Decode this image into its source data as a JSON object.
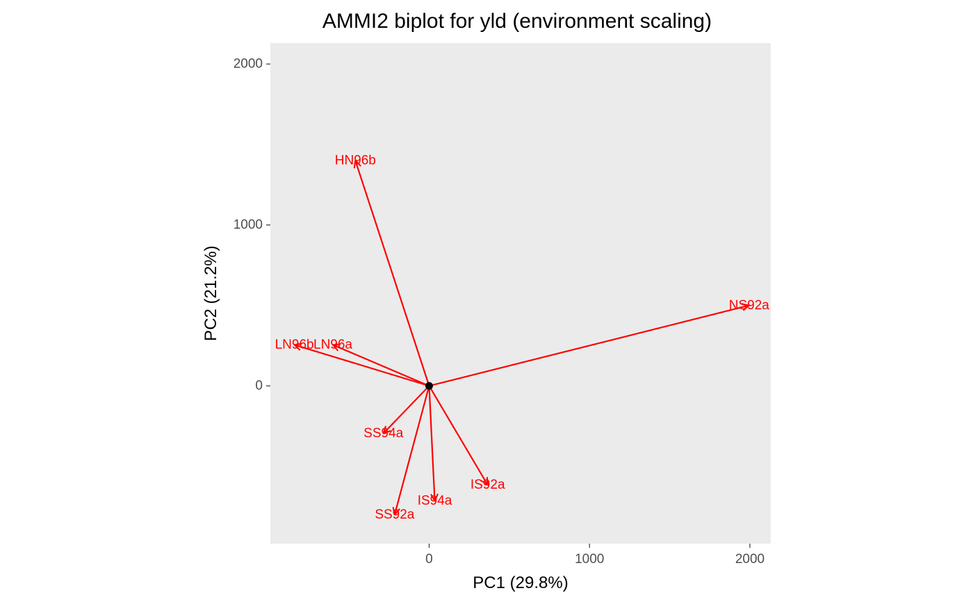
{
  "chart_data": {
    "type": "scatter",
    "title": "AMMI2 biplot for yld (environment scaling)",
    "xlabel": "PC1 (29.8%)",
    "ylabel": "PC2 (21.2%)",
    "xlim": [
      -990,
      2130
    ],
    "ylim": [
      -980,
      2130
    ],
    "xticks": [
      0,
      1000,
      2000
    ],
    "yticks": [
      0,
      1000,
      2000
    ],
    "xtick_labels": [
      "0",
      "1000",
      "2000"
    ],
    "ytick_labels": [
      "0",
      "1000",
      "2000"
    ],
    "grid": false,
    "panel_background": "#ebebeb",
    "arrow_color": "#ff0000",
    "origin_point_color": "#000000",
    "origin": [
      0,
      0
    ],
    "series": [
      {
        "points": [
          {
            "label": "HN96b",
            "x": -460,
            "y": 1400
          },
          {
            "label": "NS92a",
            "x": 1995,
            "y": 500
          },
          {
            "label": "LN96b",
            "x": -840,
            "y": 255
          },
          {
            "label": "LN96a",
            "x": -600,
            "y": 255
          },
          {
            "label": "SS94a",
            "x": -285,
            "y": -295
          },
          {
            "label": "IS92a",
            "x": 365,
            "y": -615
          },
          {
            "label": "IS94a",
            "x": 35,
            "y": -715
          },
          {
            "label": "SS92a",
            "x": -215,
            "y": -800
          }
        ]
      }
    ]
  }
}
